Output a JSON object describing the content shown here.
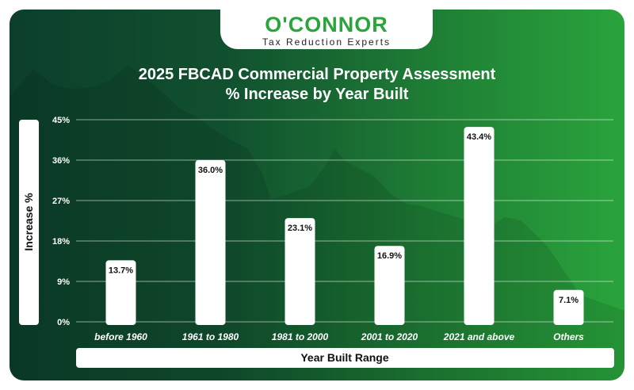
{
  "brand": {
    "name": "O'CONNOR",
    "tagline": "Tax Reduction Experts",
    "accent_color": "#2aa43c",
    "background_dark": "#0c3f2b"
  },
  "chart_data": {
    "type": "bar",
    "title": "2025 FBCAD Commercial Property Assessment",
    "subtitle": "% Increase by Year Built",
    "xlabel": "Year Built Range",
    "ylabel": "Increase %",
    "categories": [
      "before 1960",
      "1961 to 1980",
      "1981 to 2000",
      "2001 to 2020",
      "2021 and above",
      "Others"
    ],
    "values": [
      13.7,
      36.0,
      23.1,
      16.9,
      43.4,
      7.1
    ],
    "value_labels": [
      "13.7%",
      "36.0%",
      "23.1%",
      "16.9%",
      "43.4%",
      "7.1%"
    ],
    "y_ticks": [
      0,
      9,
      18,
      27,
      36,
      45
    ],
    "y_tick_labels": [
      "0%",
      "9%",
      "18%",
      "27%",
      "36%",
      "45%"
    ],
    "ylim": [
      0,
      45
    ],
    "grid": true,
    "bar_color": "#ffffff"
  }
}
